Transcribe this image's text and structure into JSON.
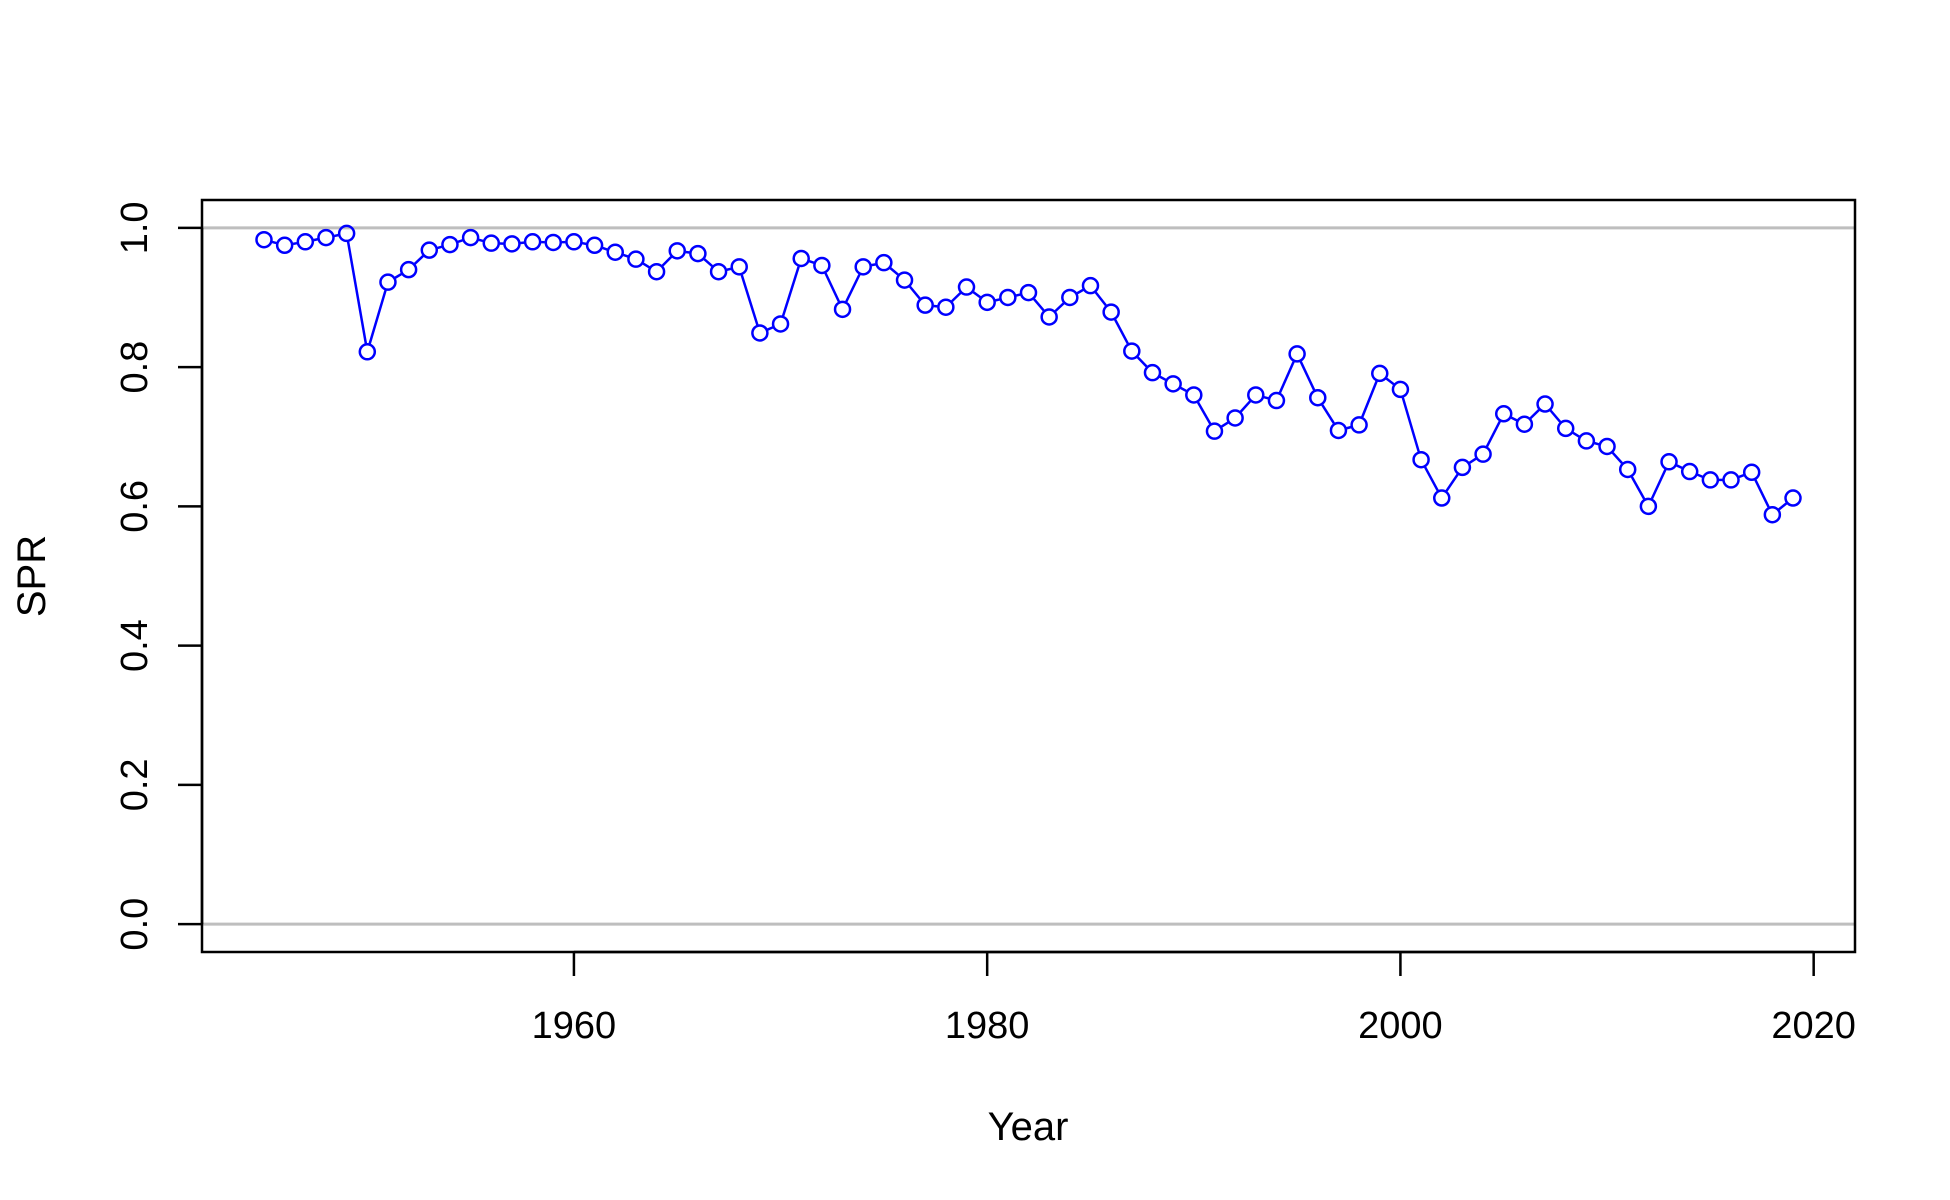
{
  "chart_data": {
    "type": "line",
    "xlabel": "Year",
    "ylabel": "SPR",
    "xlim": [
      1942,
      2022
    ],
    "ylim": [
      -0.04,
      1.04
    ],
    "x_ticks": [
      1960,
      1980,
      2000,
      2020
    ],
    "y_ticks": [
      0.0,
      0.2,
      0.4,
      0.6,
      0.8,
      1.0
    ],
    "x_tick_labels": [
      "1960",
      "1980",
      "2000",
      "2020"
    ],
    "y_tick_labels": [
      "0.0",
      "0.2",
      "0.4",
      "0.6",
      "0.8",
      "1.0"
    ],
    "reference_lines": [
      0.0,
      1.0
    ],
    "grid": false,
    "legend": "none",
    "colors": {
      "series": "#0000ff",
      "reference": "#bebebe",
      "axes": "#000000"
    },
    "marker": "open-circle",
    "series": [
      {
        "x": [
          1945,
          1946,
          1947,
          1948,
          1949,
          1950,
          1951,
          1952,
          1953,
          1954,
          1955,
          1956,
          1957,
          1958,
          1959,
          1960,
          1961,
          1962,
          1963,
          1964,
          1965,
          1966,
          1967,
          1968,
          1969,
          1970,
          1971,
          1972,
          1973,
          1974,
          1975,
          1976,
          1977,
          1978,
          1979,
          1980,
          1981,
          1982,
          1983,
          1984,
          1985,
          1986,
          1987,
          1988,
          1989,
          1990,
          1991,
          1992,
          1993,
          1994,
          1995,
          1996,
          1997,
          1998,
          1999,
          2000,
          2001,
          2002,
          2003,
          2004,
          2005,
          2006,
          2007,
          2008,
          2009,
          2010,
          2011,
          2012,
          2013,
          2014,
          2015,
          2016,
          2017,
          2018,
          2019
        ],
        "values": [
          0.983,
          0.975,
          0.98,
          0.986,
          0.992,
          0.822,
          0.922,
          0.94,
          0.968,
          0.976,
          0.986,
          0.978,
          0.977,
          0.98,
          0.979,
          0.98,
          0.975,
          0.965,
          0.955,
          0.937,
          0.967,
          0.963,
          0.937,
          0.944,
          0.849,
          0.862,
          0.956,
          0.946,
          0.883,
          0.944,
          0.95,
          0.925,
          0.889,
          0.886,
          0.915,
          0.893,
          0.9,
          0.907,
          0.872,
          0.9,
          0.917,
          0.879,
          0.823,
          0.792,
          0.776,
          0.76,
          0.708,
          0.727,
          0.76,
          0.752,
          0.819,
          0.756,
          0.709,
          0.717,
          0.791,
          0.768,
          0.667,
          0.612,
          0.656,
          0.675,
          0.733,
          0.718,
          0.747,
          0.712,
          0.694,
          0.686,
          0.653,
          0.6,
          0.664,
          0.65,
          0.638,
          0.638,
          0.649,
          0.588,
          0.612
        ]
      }
    ]
  }
}
